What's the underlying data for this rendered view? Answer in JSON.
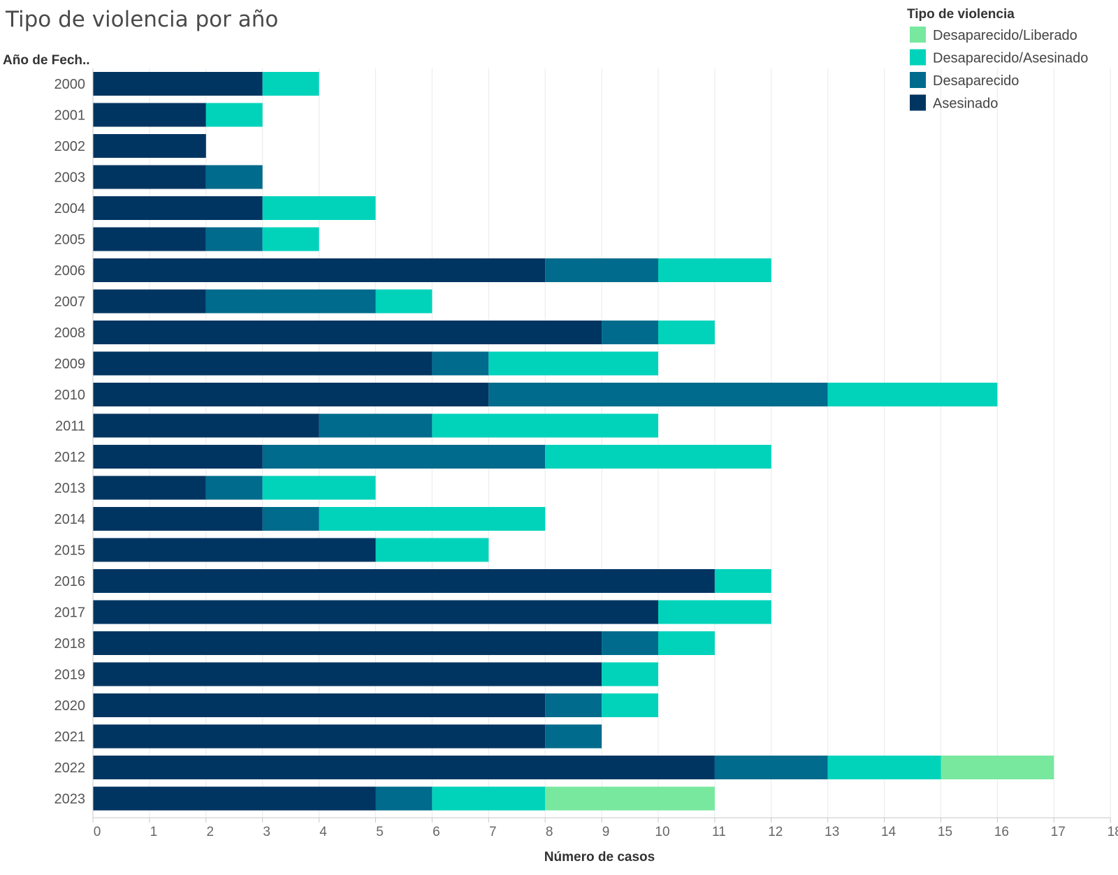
{
  "chart_data": {
    "type": "bar",
    "orientation": "horizontal",
    "stacked": true,
    "title": "Tipo de violencia por año",
    "row_header": "Año de Fech..",
    "xlabel": "Número de casos",
    "xlim": [
      0,
      18
    ],
    "x_ticks": [
      "0",
      "1",
      "2",
      "3",
      "4",
      "5",
      "6",
      "7",
      "8",
      "9",
      "10",
      "11",
      "12",
      "13",
      "14",
      "15",
      "16",
      "17",
      "18"
    ],
    "grid": true,
    "legend_title": "Tipo de violencia",
    "legend_position": "top-right",
    "legend_order": [
      "Desaparecido/Liberado",
      "Desaparecido/Asesinado",
      "Desaparecido",
      "Asesinado"
    ],
    "categories": [
      "2000",
      "2001",
      "2002",
      "2003",
      "2004",
      "2005",
      "2006",
      "2007",
      "2008",
      "2009",
      "2010",
      "2011",
      "2012",
      "2013",
      "2014",
      "2015",
      "2016",
      "2017",
      "2018",
      "2019",
      "2020",
      "2021",
      "2022",
      "2023"
    ],
    "series": [
      {
        "name": "Asesinado",
        "color": "#013561",
        "values": [
          3,
          2,
          2,
          2,
          3,
          2,
          8,
          2,
          9,
          6,
          7,
          4,
          3,
          2,
          3,
          5,
          11,
          10,
          9,
          9,
          8,
          8,
          11,
          5
        ]
      },
      {
        "name": "Desaparecido",
        "color": "#006b8c",
        "values": [
          0,
          0,
          0,
          1,
          0,
          1,
          2,
          3,
          1,
          1,
          6,
          2,
          5,
          1,
          1,
          0,
          0,
          0,
          1,
          0,
          1,
          1,
          2,
          1
        ]
      },
      {
        "name": "Desaparecido/Asesinado",
        "color": "#01d3bb",
        "values": [
          1,
          1,
          0,
          0,
          2,
          1,
          2,
          1,
          1,
          3,
          3,
          4,
          4,
          2,
          4,
          2,
          1,
          2,
          1,
          1,
          1,
          0,
          2,
          2
        ]
      },
      {
        "name": "Desaparecido/Liberado",
        "color": "#78e89e",
        "values": [
          0,
          0,
          0,
          0,
          0,
          0,
          0,
          0,
          0,
          0,
          0,
          0,
          0,
          0,
          0,
          0,
          0,
          0,
          0,
          0,
          0,
          0,
          2,
          3
        ]
      }
    ]
  }
}
